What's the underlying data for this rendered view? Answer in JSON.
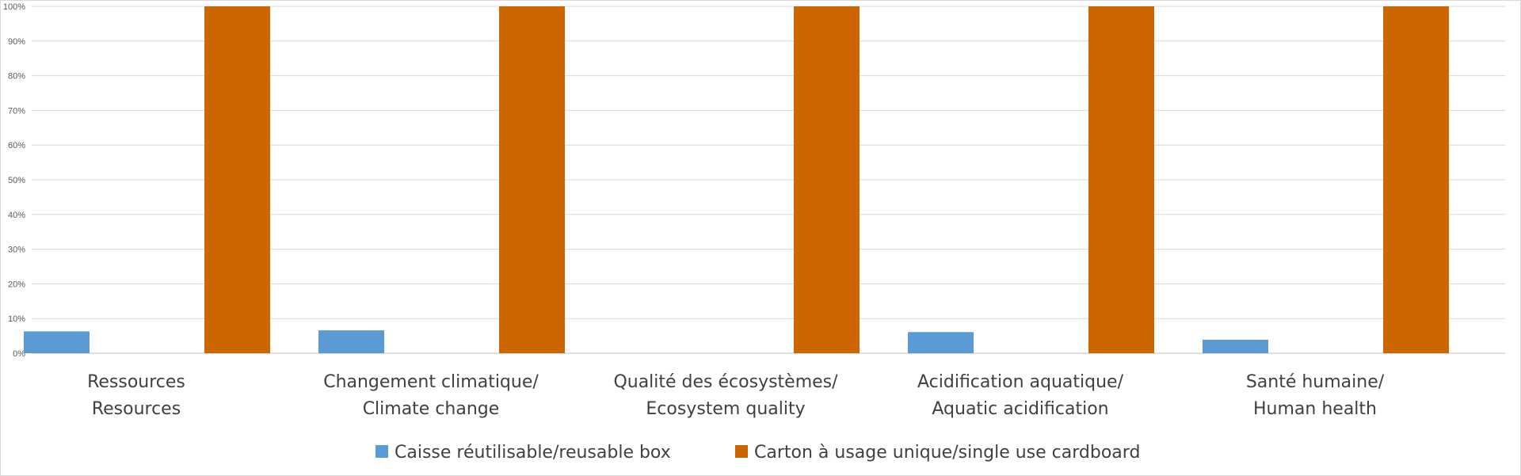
{
  "chart_data": {
    "type": "bar",
    "title": "",
    "xlabel": "",
    "ylabel": "",
    "ylim": [
      0,
      100
    ],
    "yticks": [
      "0%",
      "10%",
      "20%",
      "30%",
      "40%",
      "50%",
      "60%",
      "70%",
      "80%",
      "90%",
      "100%"
    ],
    "grid": true,
    "legend_position": "bottom",
    "categories": [
      [
        "Ressources",
        "Resources"
      ],
      [
        "Changement climatique/",
        "Climate change"
      ],
      [
        "Qualité des écosystèmes/",
        "Ecosystem quality"
      ],
      [
        "Acidification aquatique/",
        "Aquatic acidification"
      ],
      [
        "Santé humaine/",
        "Human health"
      ]
    ],
    "series": [
      {
        "name": "Caisse réutilisable/reusable box",
        "color": "#5B9BD5",
        "values": [
          6.3,
          6.6,
          0,
          6.1,
          3.9
        ]
      },
      {
        "name": "Carton à usage unique/single use cardboard",
        "color": "#CC6600",
        "values": [
          100,
          100,
          100,
          100,
          100
        ]
      }
    ]
  }
}
